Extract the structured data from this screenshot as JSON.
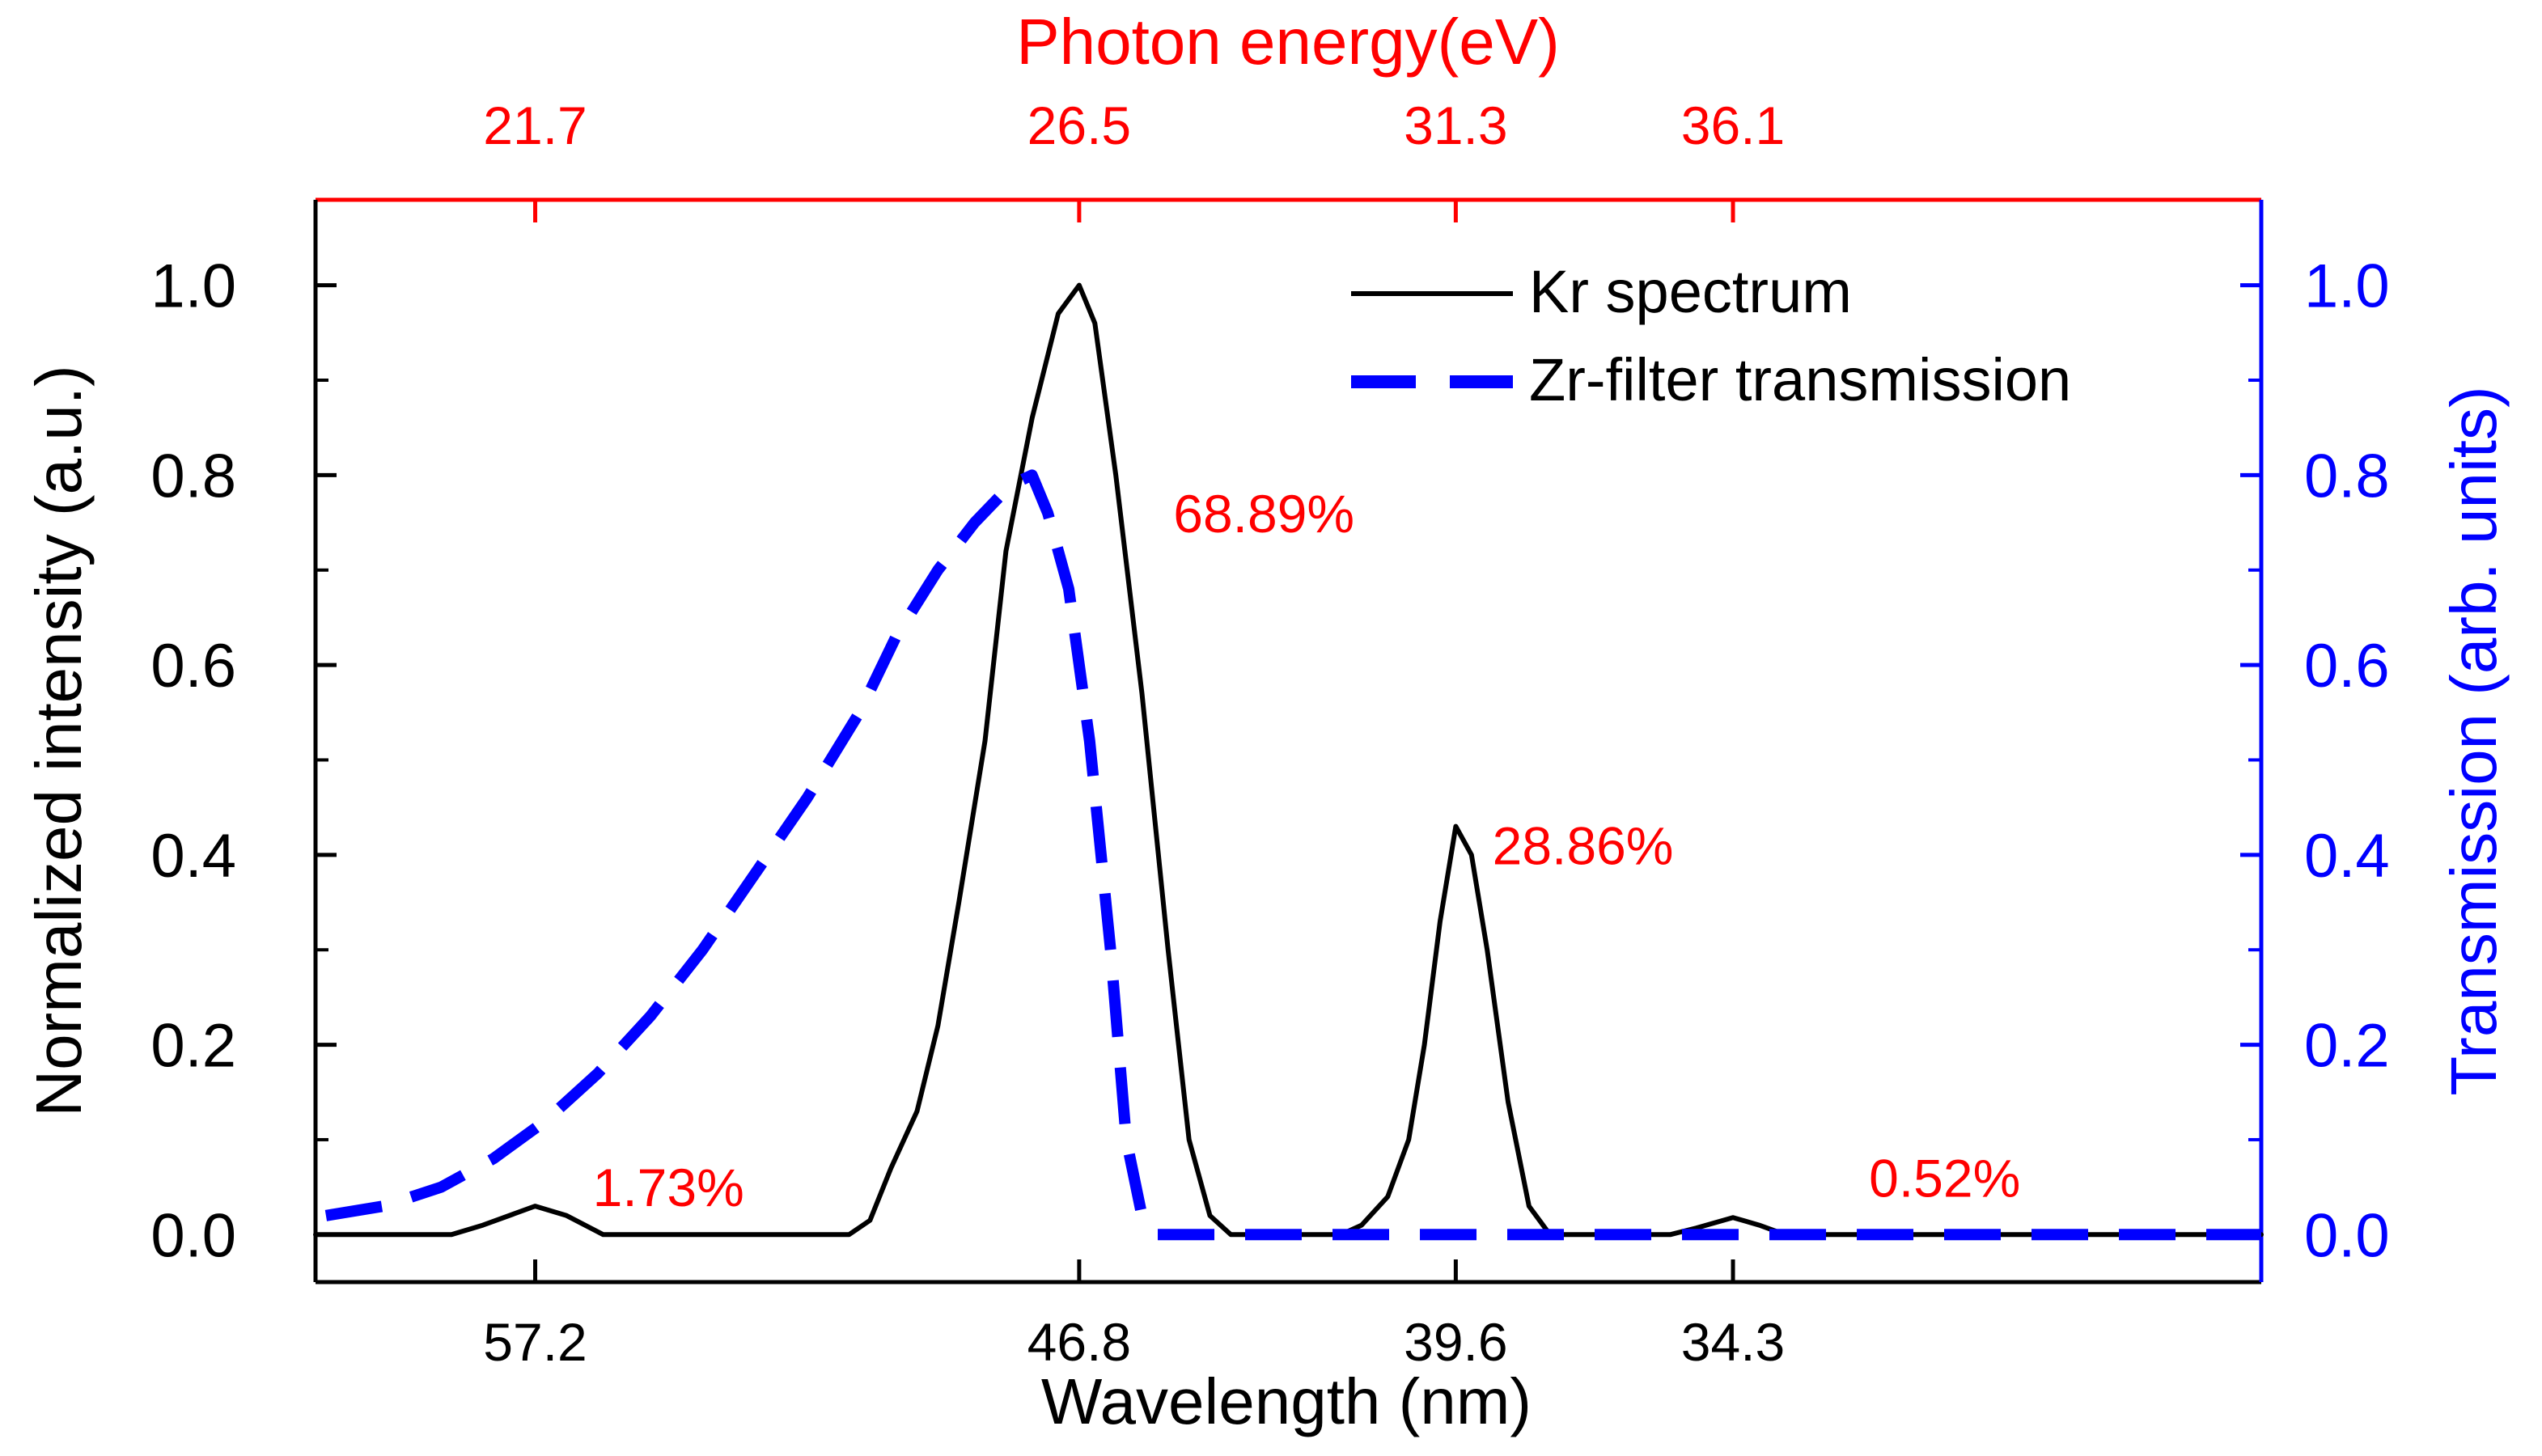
{
  "chart_data": {
    "type": "line",
    "top_axis": {
      "label": "Photon energy(eV)",
      "ticks": [
        {
          "wavelength": 57.2,
          "label": "21.7"
        },
        {
          "wavelength": 46.8,
          "label": "26.5"
        },
        {
          "wavelength": 39.6,
          "label": "31.3"
        },
        {
          "wavelength": 34.3,
          "label": "36.1"
        }
      ],
      "color": "#ff0000"
    },
    "bottom_axis": {
      "label": "Wavelength (nm)",
      "ticks": [
        {
          "wavelength": 57.2,
          "label": "57.2"
        },
        {
          "wavelength": 46.8,
          "label": "46.8"
        },
        {
          "wavelength": 39.6,
          "label": "39.6"
        },
        {
          "wavelength": 34.3,
          "label": "34.3"
        }
      ]
    },
    "left_axis": {
      "label": "Normalized intensity (a.u.)",
      "ticks": [
        "0.0",
        "0.2",
        "0.4",
        "0.6",
        "0.8",
        "1.0"
      ],
      "range": [
        -0.05,
        1.09
      ]
    },
    "right_axis": {
      "label": "Transmission (arb. units)",
      "ticks": [
        "0.0",
        "0.2",
        "0.4",
        "0.6",
        "0.8",
        "1.0"
      ],
      "range": [
        -0.05,
        1.09
      ],
      "color": "#0000ff"
    },
    "series": [
      {
        "name": "Kr spectrum",
        "color": "#000000",
        "dash": "solid",
        "points": [
          [
            61.4,
            0.0
          ],
          [
            58.8,
            0.0
          ],
          [
            58.2,
            0.01
          ],
          [
            57.2,
            0.03
          ],
          [
            56.6,
            0.02
          ],
          [
            55.9,
            0.0
          ],
          [
            51.2,
            0.0
          ],
          [
            50.8,
            0.015
          ],
          [
            50.4,
            0.07
          ],
          [
            49.9,
            0.13
          ],
          [
            49.5,
            0.22
          ],
          [
            49.1,
            0.35
          ],
          [
            48.6,
            0.52
          ],
          [
            48.2,
            0.72
          ],
          [
            47.7,
            0.86
          ],
          [
            47.2,
            0.97
          ],
          [
            46.8,
            1.0
          ],
          [
            46.5,
            0.96
          ],
          [
            46.1,
            0.8
          ],
          [
            45.6,
            0.57
          ],
          [
            45.1,
            0.3
          ],
          [
            44.7,
            0.1
          ],
          [
            44.3,
            0.02
          ],
          [
            43.9,
            0.0
          ],
          [
            41.8,
            0.0
          ],
          [
            41.4,
            0.01
          ],
          [
            40.9,
            0.04
          ],
          [
            40.5,
            0.1
          ],
          [
            40.2,
            0.2
          ],
          [
            39.9,
            0.33
          ],
          [
            39.6,
            0.43
          ],
          [
            39.3,
            0.4
          ],
          [
            39.0,
            0.3
          ],
          [
            38.6,
            0.14
          ],
          [
            38.2,
            0.03
          ],
          [
            37.8,
            0.0
          ],
          [
            35.5,
            0.0
          ],
          [
            35.0,
            0.007
          ],
          [
            34.3,
            0.018
          ],
          [
            33.8,
            0.01
          ],
          [
            33.3,
            0.0
          ],
          [
            24.2,
            0.0
          ]
        ]
      },
      {
        "name": "Zr-filter transmission",
        "color": "#0000ff",
        "dash": "dashed",
        "points": [
          [
            61.2,
            0.02
          ],
          [
            60.1,
            0.03
          ],
          [
            59.0,
            0.05
          ],
          [
            58.0,
            0.08
          ],
          [
            57.0,
            0.12
          ],
          [
            56.0,
            0.17
          ],
          [
            55.0,
            0.23
          ],
          [
            54.0,
            0.3
          ],
          [
            53.0,
            0.38
          ],
          [
            52.0,
            0.46
          ],
          [
            51.0,
            0.55
          ],
          [
            50.3,
            0.63
          ],
          [
            49.5,
            0.7
          ],
          [
            48.8,
            0.75
          ],
          [
            48.1,
            0.79
          ],
          [
            47.7,
            0.8
          ],
          [
            47.4,
            0.76
          ],
          [
            47.0,
            0.68
          ],
          [
            46.6,
            0.52
          ],
          [
            46.2,
            0.3
          ],
          [
            45.9,
            0.1
          ],
          [
            45.6,
            0.02
          ],
          [
            45.3,
            0.0
          ],
          [
            24.2,
            0.0
          ]
        ]
      }
    ],
    "annotations": [
      {
        "text": "68.89%",
        "x": 45.0,
        "y": 0.74
      },
      {
        "text": "28.86%",
        "x": 38.9,
        "y": 0.39
      },
      {
        "text": "1.73%",
        "x": 56.1,
        "y": 0.03
      },
      {
        "text": "0.52%",
        "x": 31.7,
        "y": 0.04
      }
    ],
    "legend": {
      "position": "top-right",
      "entries": [
        "Kr spectrum",
        "Zr-filter transmission"
      ]
    }
  }
}
